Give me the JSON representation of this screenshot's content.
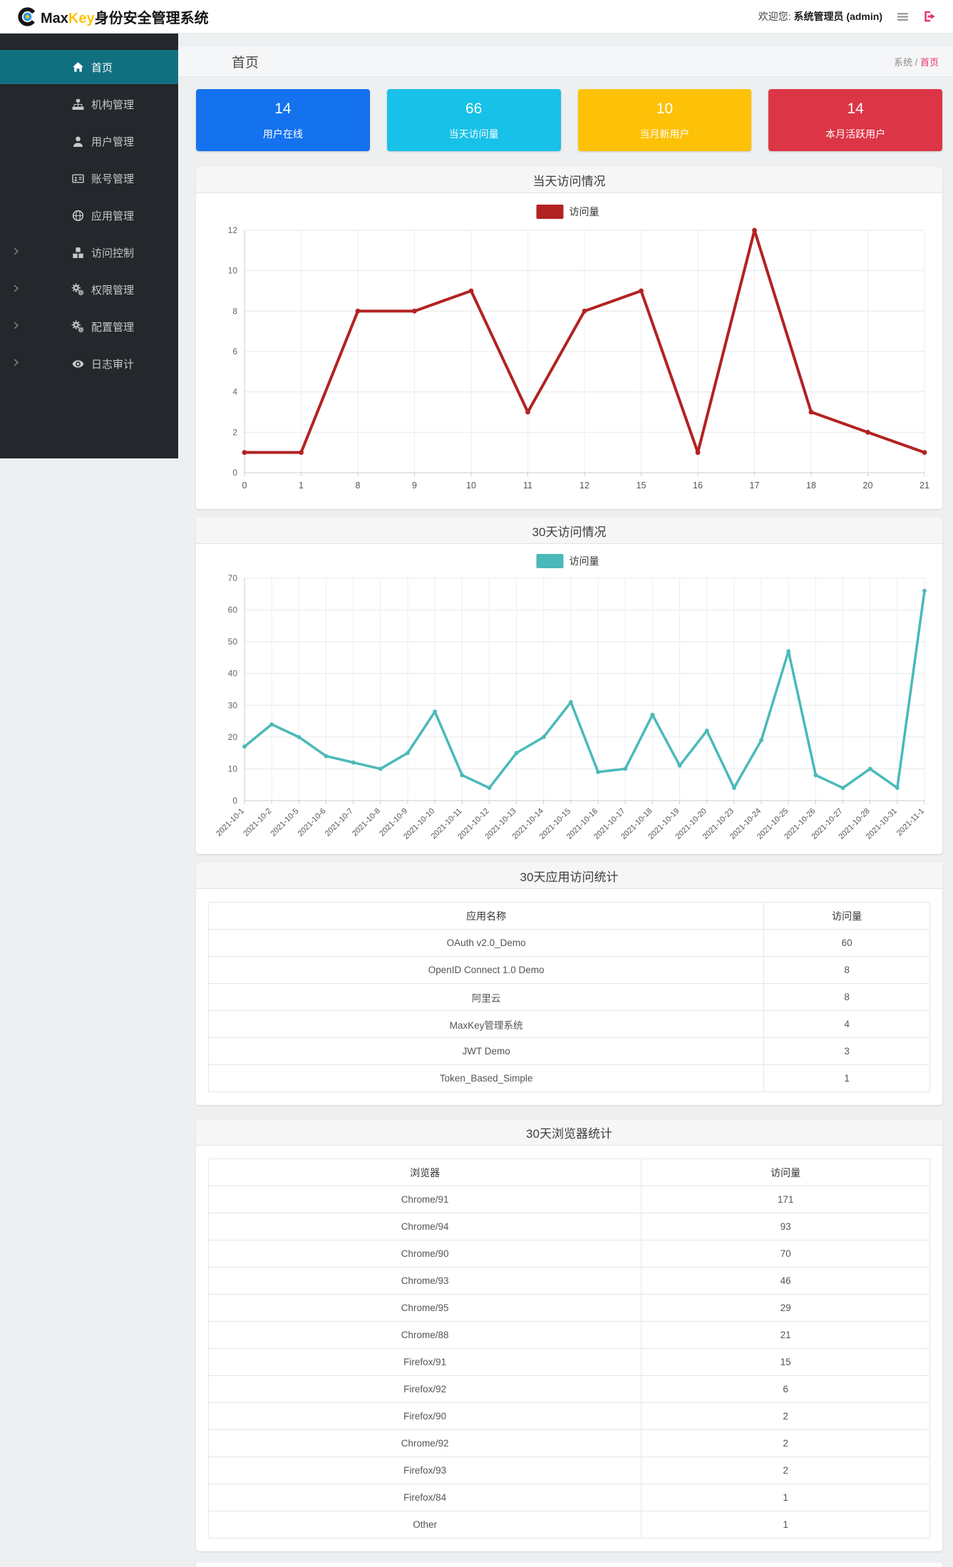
{
  "header": {
    "logo_icon": "maxkey-logo-icon",
    "brand_max": "Max",
    "brand_key": "Key",
    "brand_suffix": "身份安全管理系统",
    "welcome_prefix": "欢迎您:",
    "welcome_user": "系统管理员 (admin)",
    "menu_icon": "bars-icon",
    "logout_icon": "sign-out-icon",
    "accent_pink": "#e8336e"
  },
  "sidebar": {
    "bg_color": "#24272b",
    "active_color": "#117080",
    "items": [
      {
        "id": "home",
        "label": "首页",
        "icon": "home-icon",
        "active": true,
        "expandable": false
      },
      {
        "id": "org",
        "label": "机构管理",
        "icon": "sitemap-icon",
        "active": false,
        "expandable": false
      },
      {
        "id": "user",
        "label": "用户管理",
        "icon": "user-icon",
        "active": false,
        "expandable": false
      },
      {
        "id": "account",
        "label": "账号管理",
        "icon": "id-card-icon",
        "active": false,
        "expandable": false
      },
      {
        "id": "app",
        "label": "应用管理",
        "icon": "globe-icon",
        "active": false,
        "expandable": false
      },
      {
        "id": "access",
        "label": "访问控制",
        "icon": "cubes-icon",
        "active": false,
        "expandable": true
      },
      {
        "id": "permission",
        "label": "权限管理",
        "icon": "gears-icon",
        "active": false,
        "expandable": true
      },
      {
        "id": "config",
        "label": "配置管理",
        "icon": "gears-icon",
        "active": false,
        "expandable": true
      },
      {
        "id": "audit",
        "label": "日志审计",
        "icon": "eye-icon",
        "active": false,
        "expandable": true
      }
    ]
  },
  "breadcrumb": {
    "title": "首页",
    "root": "系统",
    "separator": " / ",
    "current": "首页"
  },
  "stat_cards": [
    {
      "value": "14",
      "label": "用户在线",
      "color": "#1572ef"
    },
    {
      "value": "66",
      "label": "当天访问量",
      "color": "#17c1e8"
    },
    {
      "value": "10",
      "label": "当月新用户",
      "color": "#fdc107"
    },
    {
      "value": "14",
      "label": "本月活跃用户",
      "color": "#dc3545"
    }
  ],
  "chart_data": [
    {
      "type": "line",
      "title": "当天访问情况",
      "legend": "访问量",
      "legend_position": "top",
      "color": "#b22222",
      "grid": true,
      "categories": [
        "0",
        "1",
        "8",
        "9",
        "10",
        "11",
        "12",
        "15",
        "16",
        "17",
        "18",
        "20",
        "21"
      ],
      "values": [
        1,
        1,
        8,
        8,
        9,
        3,
        8,
        9,
        1,
        12,
        3,
        2,
        1
      ],
      "xlabel": "",
      "ylabel": "",
      "ylim": [
        0,
        12
      ],
      "ytick": 2
    },
    {
      "type": "line",
      "title": "30天访问情况",
      "legend": "访问量",
      "legend_position": "top",
      "color": "#4ab9b9",
      "grid": true,
      "categories": [
        "2021-10-1",
        "2021-10-2",
        "2021-10-5",
        "2021-10-6",
        "2021-10-7",
        "2021-10-8",
        "2021-10-9",
        "2021-10-10",
        "2021-10-11",
        "2021-10-12",
        "2021-10-13",
        "2021-10-14",
        "2021-10-15",
        "2021-10-16",
        "2021-10-17",
        "2021-10-18",
        "2021-10-19",
        "2021-10-20",
        "2021-10-23",
        "2021-10-24",
        "2021-10-25",
        "2021-10-26",
        "2021-10-27",
        "2021-10-28",
        "2021-10-31",
        "2021-11-1"
      ],
      "values": [
        17,
        24,
        20,
        14,
        12,
        10,
        15,
        28,
        8,
        4,
        15,
        20,
        31,
        9,
        10,
        27,
        11,
        22,
        4,
        19,
        47,
        8,
        4,
        10,
        4,
        66
      ],
      "xlabel": "",
      "ylabel": "",
      "ylim": [
        0,
        70
      ],
      "ytick": 10
    }
  ],
  "tables": [
    {
      "title": "30天应用访问统计",
      "headers": [
        "应用名称",
        "访问量"
      ],
      "col_widths": [
        "77%",
        "23%"
      ],
      "rows": [
        [
          "OAuth v2.0_Demo",
          "60"
        ],
        [
          "OpenID Connect 1.0 Demo",
          "8"
        ],
        [
          "阿里云",
          "8"
        ],
        [
          "MaxKey管理系统",
          "4"
        ],
        [
          "JWT Demo",
          "3"
        ],
        [
          "Token_Based_Simple",
          "1"
        ]
      ]
    },
    {
      "title": "30天浏览器统计",
      "headers": [
        "浏览器",
        "访问量"
      ],
      "col_widths": [
        "60%",
        "40%"
      ],
      "rows": [
        [
          "Chrome/91",
          "171"
        ],
        [
          "Chrome/94",
          "93"
        ],
        [
          "Chrome/90",
          "70"
        ],
        [
          "Chrome/93",
          "46"
        ],
        [
          "Chrome/95",
          "29"
        ],
        [
          "Chrome/88",
          "21"
        ],
        [
          "Firefox/91",
          "15"
        ],
        [
          "Firefox/92",
          "6"
        ],
        [
          "Firefox/90",
          "2"
        ],
        [
          "Chrome/92",
          "2"
        ],
        [
          "Firefox/93",
          "2"
        ],
        [
          "Firefox/84",
          "1"
        ],
        [
          "Other",
          "1"
        ]
      ]
    }
  ]
}
